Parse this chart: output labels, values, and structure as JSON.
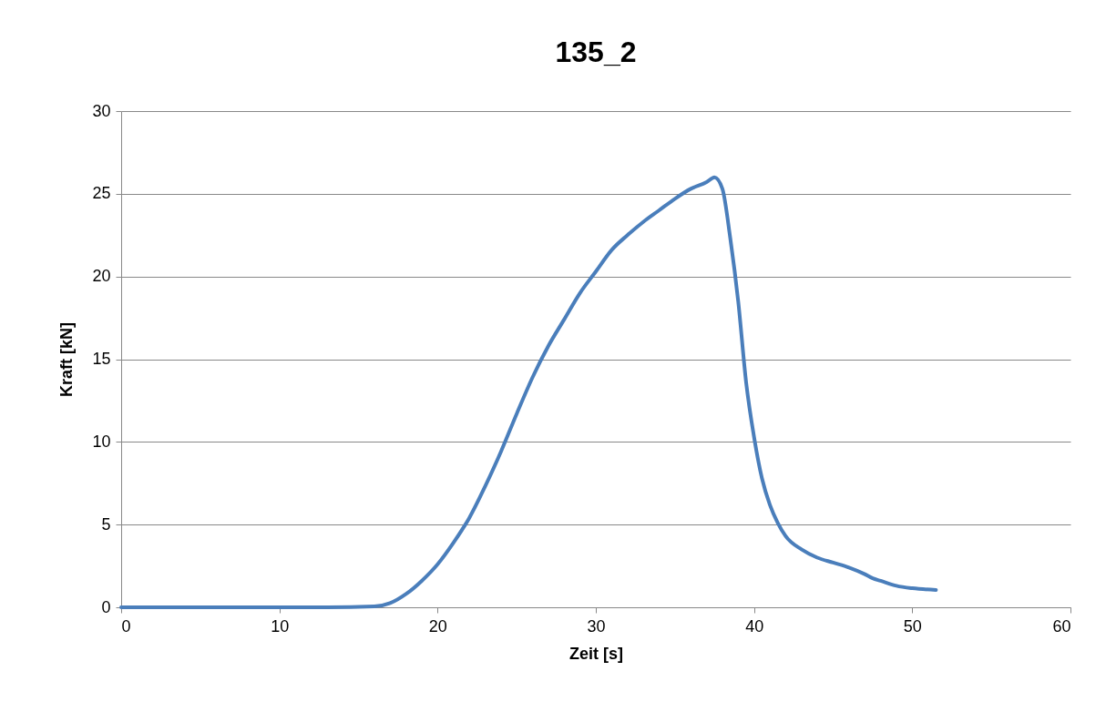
{
  "chart_data": {
    "type": "line",
    "title": "135_2",
    "xlabel": "Zeit [s]",
    "ylabel": "Kraft [kN]",
    "x": [
      0,
      13,
      16,
      17,
      18,
      19,
      20,
      21,
      22,
      23,
      24,
      25,
      26,
      27,
      28,
      29,
      30,
      31,
      32,
      33,
      34,
      35,
      36,
      37,
      37.5,
      38,
      38.5,
      39,
      39.5,
      40,
      40.5,
      41,
      41.5,
      42,
      43,
      44,
      45,
      46,
      47,
      47.5,
      48,
      49,
      50,
      51.5
    ],
    "series": [
      {
        "color": "#4a7ebb",
        "values": [
          0,
          0,
          0.05,
          0.25,
          0.8,
          1.6,
          2.6,
          3.9,
          5.4,
          7.3,
          9.4,
          11.7,
          13.9,
          15.8,
          17.4,
          19.0,
          20.3,
          21.6,
          22.5,
          23.3,
          24.0,
          24.7,
          25.3,
          25.7,
          26.0,
          25.3,
          22.3,
          18.5,
          13.6,
          10.3,
          7.8,
          6.2,
          5.1,
          4.3,
          3.5,
          3.0,
          2.7,
          2.4,
          2.0,
          1.75,
          1.6,
          1.3,
          1.15,
          1.05
        ]
      }
    ],
    "xlim": [
      0,
      60
    ],
    "xticks": [
      0,
      10,
      20,
      30,
      40,
      50,
      60
    ],
    "ylim": [
      0,
      30
    ],
    "yticks": [
      0,
      5,
      10,
      15,
      20,
      25,
      30
    ],
    "grid": "y",
    "legend": false,
    "marker": "none",
    "line_style": "solid"
  }
}
